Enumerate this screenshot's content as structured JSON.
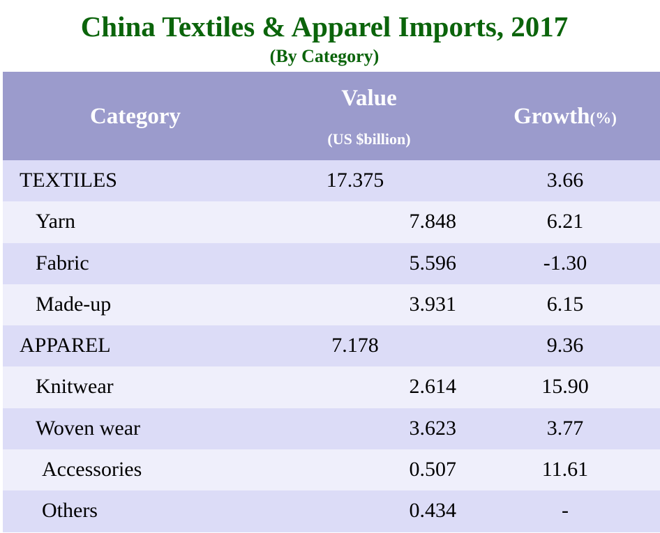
{
  "chart_data": {
    "type": "table",
    "title": "China Textiles & Apparel Imports, 2017",
    "subtitle": "(By Category)",
    "columns": {
      "category": "Category",
      "value": "Value",
      "value_unit": "(US $billion)",
      "growth": "Growth",
      "growth_unit": "(%)"
    },
    "rows": [
      {
        "category": "TEXTILES",
        "value": "17.375",
        "growth": "3.66",
        "level": 0
      },
      {
        "category": "Yarn",
        "value": "7.848",
        "growth": "6.21",
        "level": 1
      },
      {
        "category": "Fabric",
        "value": "5.596",
        "growth": "-1.30",
        "level": 1
      },
      {
        "category": "Made-up",
        "value": "3.931",
        "growth": "6.15",
        "level": 1
      },
      {
        "category": "APPAREL",
        "value": "7.178",
        "growth": "9.36",
        "level": 0
      },
      {
        "category": "Knitwear",
        "value": "2.614",
        "growth": "15.90",
        "level": 1
      },
      {
        "category": "Woven wear",
        "value": "3.623",
        "growth": "3.77",
        "level": 1
      },
      {
        "category": "Accessories",
        "value": "0.507",
        "growth": "11.61",
        "level": 2
      },
      {
        "category": "Others",
        "value": "0.434",
        "growth": "-",
        "level": 2
      }
    ]
  },
  "colors": {
    "title": "#0b640b",
    "header_bg": "#9b9bcc",
    "row_odd": "#dcdcf7",
    "row_even": "#efeffb"
  }
}
